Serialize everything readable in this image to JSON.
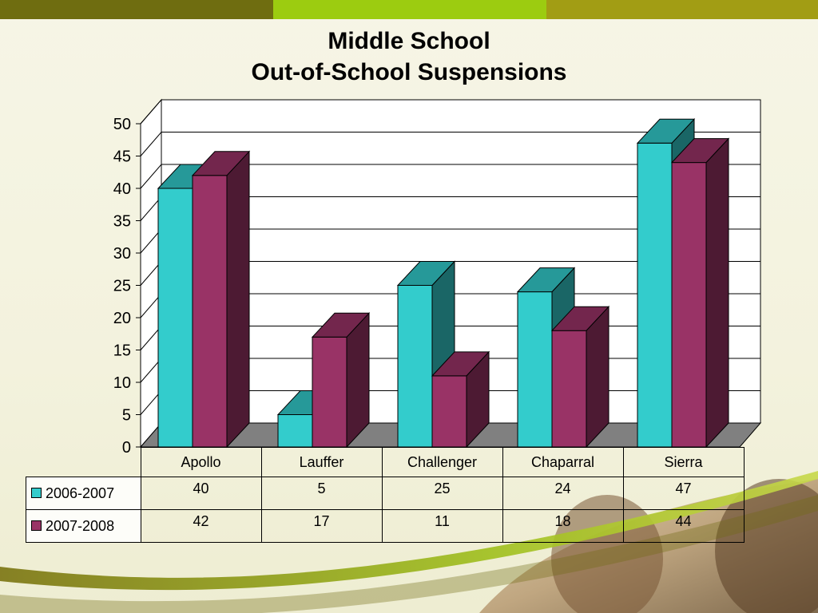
{
  "header_colors": [
    "#6f6d10",
    "#9ccc10",
    "#a29d14"
  ],
  "chart_data": {
    "type": "bar",
    "title": "Middle School",
    "subtitle": "Out-of-School Suspensions",
    "categories": [
      "Apollo",
      "Lauffer",
      "Challenger",
      "Chaparral",
      "Sierra"
    ],
    "series": [
      {
        "name": "2006-2007",
        "values": [
          40,
          5,
          25,
          24,
          47
        ],
        "color": "#33cccc"
      },
      {
        "name": "2007-2008",
        "values": [
          42,
          17,
          11,
          18,
          44
        ],
        "color": "#993366"
      }
    ],
    "ylim": [
      0,
      50
    ],
    "yticks": [
      "0",
      "5",
      "10",
      "15",
      "20",
      "25",
      "30",
      "35",
      "40",
      "45",
      "50"
    ],
    "grid": true,
    "style": "3d-clustered-column",
    "legend": "data-table-below"
  }
}
